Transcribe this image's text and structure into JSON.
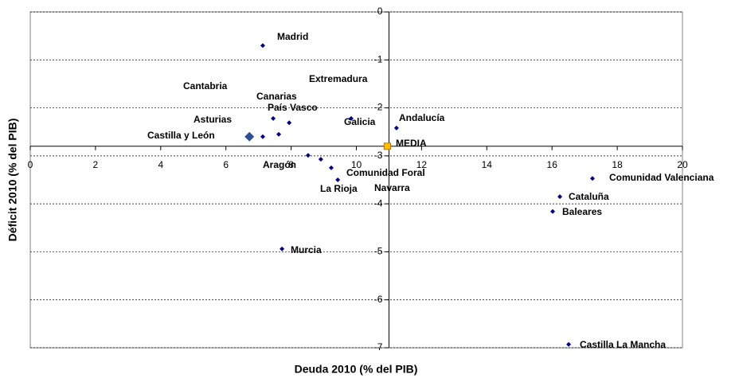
{
  "chart_data": {
    "type": "scatter",
    "xlabel": "Deuda 2010 (% del PIB)",
    "ylabel": "Déficit 2010 (% del PIB)",
    "labels": [
      "Madrid",
      "Canarias",
      "País Vasco",
      "Galicia",
      "Andalucía",
      "Castilla y León",
      "Asturias",
      "Cantabria",
      "Aragón",
      "Extremadura",
      [
        "Comunidad Foral",
        "Navarra"
      ],
      "La Rioja",
      "Comunidad Valenciana",
      "Cataluña",
      "Baleares",
      "Murcia",
      "Castilla La Mancha"
    ],
    "x": [
      7.13,
      7.45,
      7.94,
      9.84,
      11.23,
      6.72,
      7.13,
      7.62,
      8.52,
      8.91,
      9.23,
      9.43,
      17.24,
      16.24,
      16.02,
      7.72,
      16.51
    ],
    "y": [
      -0.7,
      -2.22,
      -2.31,
      -2.22,
      -2.42,
      -2.6,
      -2.6,
      -2.55,
      -2.99,
      -3.07,
      -3.25,
      -3.5,
      -3.47,
      -3.85,
      -4.16,
      -4.94,
      -6.93
    ],
    "color": "#000080",
    "highlight_index": 5,
    "mean": {
      "label": "MEDIA",
      "x": 10.95,
      "y": -2.8,
      "color": "#ffc000"
    },
    "xlim": [
      0,
      20
    ],
    "xticks": [
      0,
      2,
      4,
      6,
      8,
      10,
      12,
      14,
      16,
      18,
      20
    ],
    "ylim": [
      -7,
      0
    ],
    "yticks": [
      0,
      -1,
      -2,
      -3,
      -4,
      -5,
      -6,
      -7
    ],
    "x_axis_at": -2.8,
    "y_axis_at": 11,
    "grid": true
  }
}
